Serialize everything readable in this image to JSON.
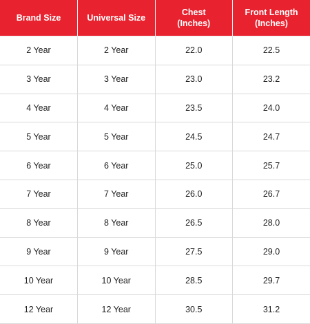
{
  "header": {
    "brand_size": "Brand Size",
    "universal_size": "Universal Size",
    "chest_line1": "Chest",
    "chest_line2": "(Inches)",
    "front_length_line1": "Front Length",
    "front_length_line2": "(Inches)"
  },
  "rows": [
    {
      "brand": "2 Year",
      "universal": "2 Year",
      "chest": "22.0",
      "length": "22.5"
    },
    {
      "brand": "3 Year",
      "universal": "3 Year",
      "chest": "23.0",
      "length": "23.2"
    },
    {
      "brand": "4 Year",
      "universal": "4 Year",
      "chest": "23.5",
      "length": "24.0"
    },
    {
      "brand": "5 Year",
      "universal": "5 Year",
      "chest": "24.5",
      "length": "24.7"
    },
    {
      "brand": "6 Year",
      "universal": "6 Year",
      "chest": "25.0",
      "length": "25.7"
    },
    {
      "brand": "7 Year",
      "universal": "7 Year",
      "chest": "26.0",
      "length": "26.7"
    },
    {
      "brand": "8 Year",
      "universal": "8 Year",
      "chest": "26.5",
      "length": "28.0"
    },
    {
      "brand": "9 Year",
      "universal": "9 Year",
      "chest": "27.5",
      "length": "29.0"
    },
    {
      "brand": "10 Year",
      "universal": "10 Year",
      "chest": "28.5",
      "length": "29.7"
    },
    {
      "brand": "12 Year",
      "universal": "12 Year",
      "chest": "30.5",
      "length": "31.2"
    }
  ],
  "colors": {
    "header_background": "#e8232f",
    "header_text": "#ffffff",
    "cell_text": "#222222",
    "grid_line": "#d9d9d9"
  }
}
